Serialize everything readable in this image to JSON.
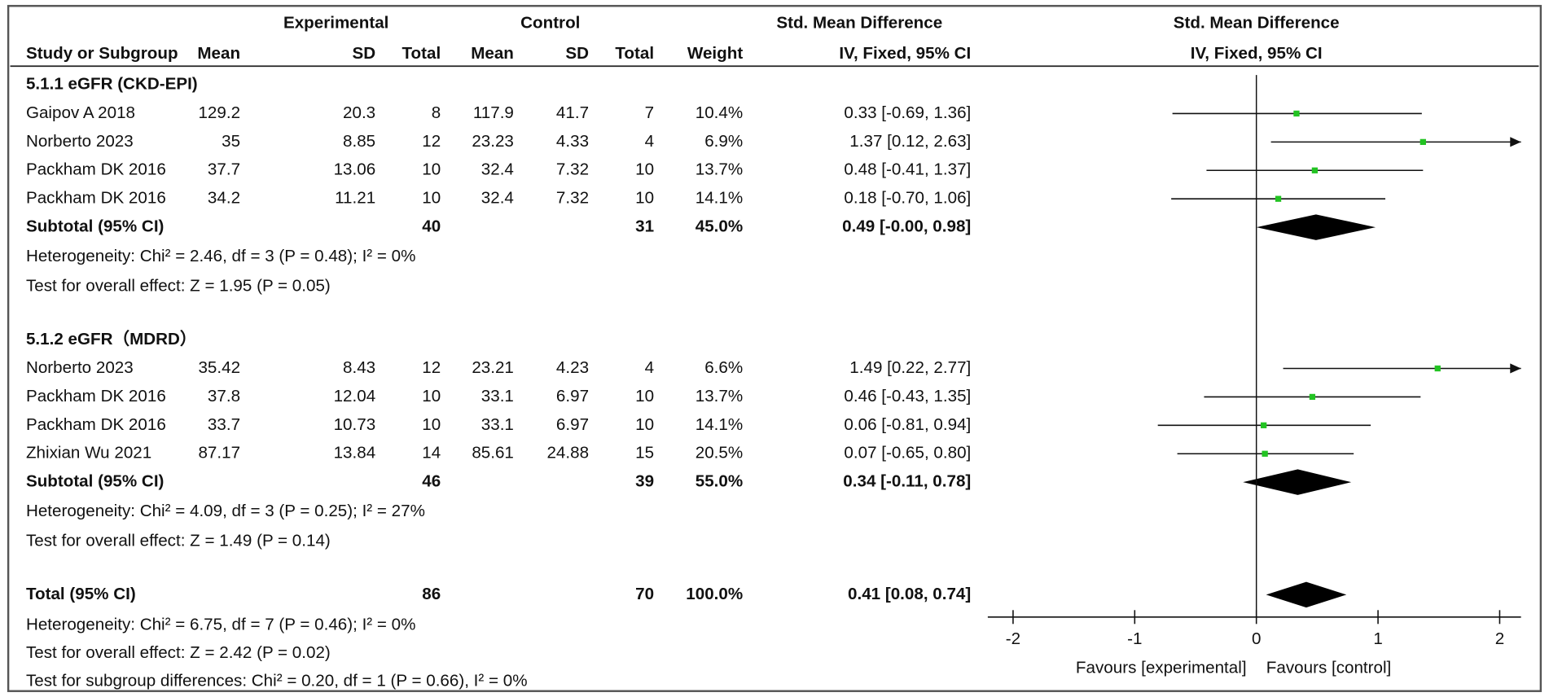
{
  "chart_data": {
    "type": "forest",
    "headers": {
      "experimental": "Experimental",
      "control": "Control",
      "smd_table": "Std. Mean Difference",
      "smd_plot": "Std. Mean Difference",
      "columns": [
        "Study or Subgroup",
        "Mean",
        "SD",
        "Total",
        "Mean",
        "SD",
        "Total",
        "Weight",
        "IV, Fixed, 95% CI"
      ],
      "plot_method": "IV, Fixed, 95% CI"
    },
    "marker_color": "#22c322",
    "diamond_color": "#000000",
    "groups": [
      {
        "title": "5.1.1 eGFR (CKD-EPI)",
        "studies": [
          {
            "name": "Gaipov A 2018",
            "cells": [
              "129.2",
              "20.3",
              "8",
              "117.9",
              "41.7",
              "7",
              "10.4%"
            ],
            "estimate": 0.33,
            "ci": [
              -0.69,
              1.36
            ],
            "label": "0.33 [-0.69, 1.36]"
          },
          {
            "name": "Norberto 2023",
            "cells": [
              "35",
              "8.85",
              "12",
              "23.23",
              "4.33",
              "4",
              "6.9%"
            ],
            "estimate": 1.37,
            "ci": [
              0.12,
              2.63
            ],
            "label": "1.37 [0.12, 2.63]"
          },
          {
            "name": "Packham DK 2016",
            "cells": [
              "37.7",
              "13.06",
              "10",
              "32.4",
              "7.32",
              "10",
              "13.7%"
            ],
            "estimate": 0.48,
            "ci": [
              -0.41,
              1.37
            ],
            "label": "0.48 [-0.41, 1.37]"
          },
          {
            "name": "Packham DK 2016",
            "cells": [
              "34.2",
              "11.21",
              "10",
              "32.4",
              "7.32",
              "10",
              "14.1%"
            ],
            "estimate": 0.18,
            "ci": [
              -0.7,
              1.06
            ],
            "label": "0.18 [-0.70, 1.06]"
          }
        ],
        "subtotal": {
          "name": "Subtotal (95% CI)",
          "exp_total": "40",
          "ctl_total": "31",
          "weight": "45.0%",
          "estimate": 0.49,
          "ci": [
            -0.0,
            0.98
          ],
          "label": "0.49 [-0.00, 0.98]"
        },
        "heterogeneity": "Heterogeneity: Chi² = 2.46, df = 3 (P = 0.48); I² = 0%",
        "overall": "Test for overall effect: Z = 1.95 (P = 0.05)"
      },
      {
        "title": "5.1.2 eGFR（MDRD）",
        "studies": [
          {
            "name": "Norberto 2023",
            "cells": [
              "35.42",
              "8.43",
              "12",
              "23.21",
              "4.23",
              "4",
              "6.6%"
            ],
            "estimate": 1.49,
            "ci": [
              0.22,
              2.77
            ],
            "label": "1.49 [0.22, 2.77]"
          },
          {
            "name": "Packham DK 2016",
            "cells": [
              "37.8",
              "12.04",
              "10",
              "33.1",
              "6.97",
              "10",
              "13.7%"
            ],
            "estimate": 0.46,
            "ci": [
              -0.43,
              1.35
            ],
            "label": "0.46 [-0.43, 1.35]"
          },
          {
            "name": "Packham DK 2016",
            "cells": [
              "33.7",
              "10.73",
              "10",
              "33.1",
              "6.97",
              "10",
              "14.1%"
            ],
            "estimate": 0.06,
            "ci": [
              -0.81,
              0.94
            ],
            "label": "0.06 [-0.81, 0.94]"
          },
          {
            "name": "Zhixian Wu 2021",
            "cells": [
              "87.17",
              "13.84",
              "14",
              "85.61",
              "24.88",
              "15",
              "20.5%"
            ],
            "estimate": 0.07,
            "ci": [
              -0.65,
              0.8
            ],
            "label": "0.07 [-0.65, 0.80]"
          }
        ],
        "subtotal": {
          "name": "Subtotal (95% CI)",
          "exp_total": "46",
          "ctl_total": "39",
          "weight": "55.0%",
          "estimate": 0.34,
          "ci": [
            -0.11,
            0.78
          ],
          "label": "0.34 [-0.11, 0.78]"
        },
        "heterogeneity": "Heterogeneity: Chi² = 4.09, df = 3 (P = 0.25); I² = 27%",
        "overall": "Test for overall effect: Z = 1.49 (P = 0.14)"
      }
    ],
    "total": {
      "name": "Total (95% CI)",
      "exp_total": "86",
      "ctl_total": "70",
      "weight": "100.0%",
      "estimate": 0.41,
      "ci": [
        0.08,
        0.74
      ],
      "label": "0.41 [0.08, 0.74]"
    },
    "footer": [
      "Heterogeneity: Chi² = 6.75, df = 7 (P = 0.46); I² = 0%",
      "Test for overall effect: Z = 2.42 (P = 0.02)",
      "Test for subgroup differences: Chi² = 0.20, df = 1 (P = 0.66), I² = 0%"
    ],
    "xlim": [
      -2,
      2
    ],
    "xticks": [
      -2,
      -1,
      0,
      1,
      2
    ],
    "favours": [
      "Favours [experimental]",
      "Favours [control]"
    ]
  }
}
